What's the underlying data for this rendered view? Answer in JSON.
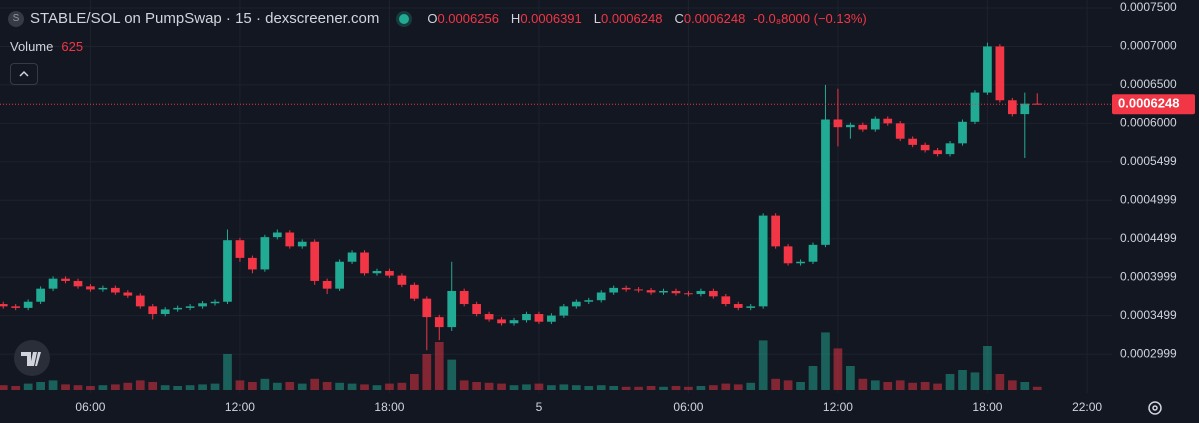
{
  "chart_data": {
    "type": "candlestick",
    "header": {
      "icon_letter": "S",
      "title": "STABLE/SOL on PumpSwap · 15 · dexscreener.com",
      "o_label": "O",
      "o_value": "0.0006256",
      "h_label": "H",
      "h_value": "0.0006391",
      "l_label": "L",
      "l_value": "0.0006248",
      "c_label": "C",
      "c_value": "0.0006248",
      "change": "-0.0₈8000 (−0.13%)",
      "volume_label": "Volume",
      "volume_value": "625"
    },
    "up_color": "#22ab94",
    "down_color": "#f23645",
    "x": [
      2.5,
      3,
      3.5,
      4,
      4.5,
      5,
      5.5,
      6,
      6.5,
      7,
      7.5,
      8,
      8.5,
      9,
      9.5,
      10,
      10.5,
      11,
      11.5,
      12,
      12.5,
      13,
      13.5,
      14,
      14.5,
      15,
      15.5,
      16,
      16.5,
      17,
      17.5,
      18,
      18.5,
      19,
      19.5,
      20,
      20.5,
      21,
      21.5,
      22,
      22.5,
      23,
      23.5,
      24,
      24.5,
      25,
      25.5,
      26,
      26.5,
      27,
      27.5,
      28,
      28.5,
      29,
      29.5,
      30,
      30.5,
      31,
      31.5,
      32,
      32.5,
      33,
      33.5,
      34,
      34.5,
      35,
      35.5,
      36,
      36.5,
      37,
      37.5,
      38,
      38.5,
      39,
      39.5,
      40,
      40.5,
      41,
      41.5,
      42,
      42.5,
      43,
      43.5,
      44
    ],
    "open": [
      0.000365,
      0.000362,
      0.00036,
      0.000368,
      0.000385,
      0.000398,
      0.000395,
      0.000388,
      0.000384,
      0.000386,
      0.00038,
      0.000376,
      0.000362,
      0.000352,
      0.000358,
      0.00036,
      0.000362,
      0.000366,
      0.000368,
      0.000448,
      0.000425,
      0.00041,
      0.000452,
      0.000458,
      0.00044,
      0.000446,
      0.000395,
      0.000385,
      0.00042,
      0.000432,
      0.000405,
      0.000408,
      0.000402,
      0.00039,
      0.000372,
      0.000348,
      0.000335,
      0.000382,
      0.000365,
      0.000352,
      0.000345,
      0.00034,
      0.000344,
      0.000352,
      0.000342,
      0.00035,
      0.000362,
      0.000368,
      0.00037,
      0.00038,
      0.000386,
      0.000384,
      0.000383,
      0.00038,
      0.000382,
      0.000379,
      0.000378,
      0.000382,
      0.000375,
      0.000365,
      0.00036,
      0.000362,
      0.00048,
      0.00044,
      0.000418,
      0.00042,
      0.000442,
      0.000605,
      0.000595,
      0.000598,
      0.000592,
      0.000606,
      0.0006,
      0.00058,
      0.000572,
      0.000565,
      0.00056,
      0.000574,
      0.000602,
      0.00064,
      0.0007,
      0.00063,
      0.000612,
      0.0006256
    ],
    "high": [
      0.000368,
      0.000365,
      0.000371,
      0.000388,
      0.000401,
      0.000401,
      0.000398,
      0.000391,
      0.000389,
      0.000389,
      0.000383,
      0.000379,
      0.000365,
      0.000361,
      0.000363,
      0.000365,
      0.000369,
      0.000371,
      0.000462,
      0.000451,
      0.000428,
      0.000455,
      0.000462,
      0.000461,
      0.000449,
      0.000449,
      0.000398,
      0.000423,
      0.000435,
      0.000435,
      0.000411,
      0.000411,
      0.000405,
      0.000393,
      0.000375,
      0.000351,
      0.00042,
      0.000385,
      0.000368,
      0.000355,
      0.000348,
      0.000347,
      0.000355,
      0.000355,
      0.000353,
      0.000365,
      0.000371,
      0.000373,
      0.000383,
      0.000389,
      0.000389,
      0.000387,
      0.000386,
      0.000385,
      0.000385,
      0.000382,
      0.000385,
      0.000385,
      0.000378,
      0.000368,
      0.000365,
      0.000483,
      0.000483,
      0.000443,
      0.000423,
      0.000445,
      0.00065,
      0.000645,
      0.000601,
      0.000601,
      0.000609,
      0.000609,
      0.000603,
      0.000583,
      0.000575,
      0.000568,
      0.000577,
      0.000605,
      0.000643,
      0.000705,
      0.000703,
      0.000633,
      0.00064,
      0.0006391
    ],
    "low": [
      0.000359,
      0.000357,
      0.000357,
      0.000365,
      0.000382,
      0.000392,
      0.000385,
      0.000381,
      0.000381,
      0.000377,
      0.000373,
      0.000359,
      0.000345,
      0.000349,
      0.000355,
      0.000357,
      0.000359,
      0.000363,
      0.000365,
      0.00042,
      0.000405,
      0.000407,
      0.000449,
      0.000437,
      0.000437,
      0.00039,
      0.000378,
      0.000382,
      0.000417,
      0.000402,
      0.000402,
      0.000399,
      0.000387,
      0.000369,
      0.000305,
      0.000318,
      0.00033,
      0.000362,
      0.000349,
      0.000342,
      0.000337,
      0.000337,
      0.000341,
      0.000339,
      0.000339,
      0.000347,
      0.000359,
      0.000365,
      0.000367,
      0.000377,
      0.000381,
      0.00038,
      0.000377,
      0.000377,
      0.000376,
      0.000375,
      0.000375,
      0.000372,
      0.000362,
      0.000357,
      0.000357,
      0.000359,
      0.000437,
      0.000415,
      0.000415,
      0.000417,
      0.000439,
      0.00057,
      0.00058,
      0.000589,
      0.000589,
      0.000597,
      0.000577,
      0.000569,
      0.000562,
      0.000557,
      0.000557,
      0.000571,
      0.000599,
      0.000637,
      0.000627,
      0.000609,
      0.000555,
      0.0006248
    ],
    "close": [
      0.000362,
      0.00036,
      0.000368,
      0.000385,
      0.000398,
      0.000395,
      0.000388,
      0.000384,
      0.000386,
      0.00038,
      0.000376,
      0.000362,
      0.000352,
      0.000358,
      0.00036,
      0.000362,
      0.000366,
      0.000368,
      0.000448,
      0.000425,
      0.00041,
      0.000452,
      0.000458,
      0.00044,
      0.000446,
      0.000395,
      0.000385,
      0.00042,
      0.000432,
      0.000405,
      0.000408,
      0.000402,
      0.00039,
      0.000372,
      0.000348,
      0.000335,
      0.000382,
      0.000365,
      0.000352,
      0.000345,
      0.00034,
      0.000344,
      0.000352,
      0.000342,
      0.00035,
      0.000362,
      0.000368,
      0.00037,
      0.00038,
      0.000386,
      0.000384,
      0.000383,
      0.00038,
      0.000382,
      0.000379,
      0.000378,
      0.000382,
      0.000375,
      0.000365,
      0.00036,
      0.000362,
      0.00048,
      0.00044,
      0.000418,
      0.00042,
      0.000442,
      0.000605,
      0.000595,
      0.000598,
      0.000592,
      0.000606,
      0.0006,
      0.00058,
      0.000572,
      0.000565,
      0.00056,
      0.000574,
      0.000602,
      0.00064,
      0.0007,
      0.00063,
      0.000612,
      0.0006256,
      0.0006248
    ],
    "volume": [
      6,
      5,
      8,
      10,
      12,
      7,
      6,
      5,
      6,
      7,
      9,
      12,
      10,
      6,
      5,
      6,
      7,
      8,
      45,
      12,
      10,
      14,
      9,
      10,
      8,
      14,
      10,
      9,
      8,
      7,
      6,
      8,
      9,
      20,
      45,
      60,
      38,
      12,
      10,
      9,
      8,
      6,
      7,
      8,
      6,
      7,
      6,
      5,
      6,
      5,
      4,
      4,
      5,
      4,
      5,
      4,
      5,
      6,
      8,
      7,
      9,
      62,
      14,
      12,
      10,
      30,
      72,
      52,
      30,
      14,
      12,
      10,
      12,
      9,
      10,
      8,
      20,
      25,
      22,
      55,
      20,
      12,
      10,
      4
    ],
    "vlim": [
      0,
      100
    ],
    "xlim": [
      2.37,
      47.0
    ],
    "xticks": [
      {
        "value": 6,
        "label": "06:00"
      },
      {
        "value": 12,
        "label": "12:00"
      },
      {
        "value": 18,
        "label": "18:00"
      },
      {
        "value": 24,
        "label": "5"
      },
      {
        "value": 30,
        "label": "06:00"
      },
      {
        "value": 36,
        "label": "12:00"
      },
      {
        "value": 42,
        "label": "18:00"
      },
      {
        "value": 46,
        "label": "22:00"
      }
    ],
    "ylim": [
      0.0002493,
      0.0007604
    ],
    "yticks": [
      {
        "value": 0.00075,
        "label": "0.0007500"
      },
      {
        "value": 0.0007,
        "label": "0.0007000"
      },
      {
        "value": 0.00065,
        "label": "0.0006500"
      },
      {
        "value": 0.0006,
        "label": "0.0006000"
      },
      0.0005499,
      0.0004999,
      0.0004499,
      0.0003999,
      0.0003499,
      0.0002999
    ],
    "last_price": {
      "value": 0.0006248,
      "label": "0.0006248"
    },
    "grid": true
  }
}
